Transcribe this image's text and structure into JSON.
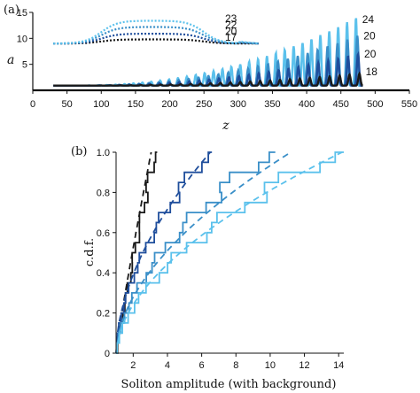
{
  "chart_data": [
    {
      "type": "line",
      "panel_label": "(a)",
      "xlabel": "z",
      "ylabel": "a",
      "xlim": [
        0,
        550
      ],
      "ylim": [
        0,
        15
      ],
      "xticks": [
        0,
        50,
        100,
        150,
        200,
        250,
        300,
        350,
        400,
        450,
        500,
        550
      ],
      "yticks": [
        5,
        10,
        15
      ],
      "series": [
        {
          "color": "#1a1a1a",
          "kind": "soliton-train",
          "label": "18",
          "peak_amplitude": 3.2,
          "peak_z": 477
        },
        {
          "color": "#1f4e9c",
          "kind": "soliton-train",
          "label": "20",
          "peak_amplitude": 7.0,
          "peak_z": 475
        },
        {
          "color": "#3a8fc8",
          "kind": "soliton-train",
          "label": "20",
          "peak_amplitude": 10.5,
          "peak_z": 474
        },
        {
          "color": "#5bc1ec",
          "kind": "soliton-train",
          "label": "24",
          "peak_amplitude": 14.0,
          "peak_z": 472
        },
        {
          "color": "#1a1a1a",
          "kind": "dotted-envelope",
          "label": "17",
          "z": [
            30,
            330
          ],
          "level": 9.2
        },
        {
          "color": "#1f4e9c",
          "kind": "dotted-envelope",
          "label": "20",
          "z": [
            30,
            330
          ],
          "level": 10.3
        },
        {
          "color": "#3a8fc8",
          "kind": "dotted-envelope",
          "label": "22",
          "z": [
            30,
            330
          ],
          "level": 11.6
        },
        {
          "color": "#5bc1ec",
          "kind": "dotted-envelope",
          "label": "23",
          "z": [
            30,
            330
          ],
          "level": 12.8
        }
      ]
    },
    {
      "type": "line",
      "panel_label": "(b)",
      "xlabel": "Soliton amplitude (with background)",
      "ylabel": "c.d.f.",
      "xlim": [
        1,
        14.3
      ],
      "ylim": [
        0,
        1.0
      ],
      "xticks": [
        2,
        4,
        6,
        8,
        10,
        12,
        14
      ],
      "yticks": [
        0,
        0.2,
        0.4,
        0.6,
        0.8,
        1.0
      ],
      "series": [
        {
          "color": "#1a1a1a",
          "style": "dashed",
          "kind": "theory",
          "max_x": 3.05
        },
        {
          "color": "#1a1a1a",
          "style": "solid",
          "kind": "empirical-step",
          "max_x": 3.4
        },
        {
          "color": "#1f4e9c",
          "style": "dashed",
          "kind": "theory",
          "max_x": 6.5
        },
        {
          "color": "#1f4e9c",
          "style": "solid",
          "kind": "empirical-step",
          "max_x": 6.6
        },
        {
          "color": "#3a8fc8",
          "style": "dashed",
          "kind": "theory",
          "max_x": 11.2
        },
        {
          "color": "#3a8fc8",
          "style": "solid",
          "kind": "empirical-step",
          "max_x": 10.3
        },
        {
          "color": "#5bc1ec",
          "style": "dashed",
          "kind": "theory",
          "max_x": 14.2
        },
        {
          "color": "#5bc1ec",
          "style": "solid",
          "kind": "empirical-step",
          "max_x": 14.3
        }
      ]
    }
  ]
}
